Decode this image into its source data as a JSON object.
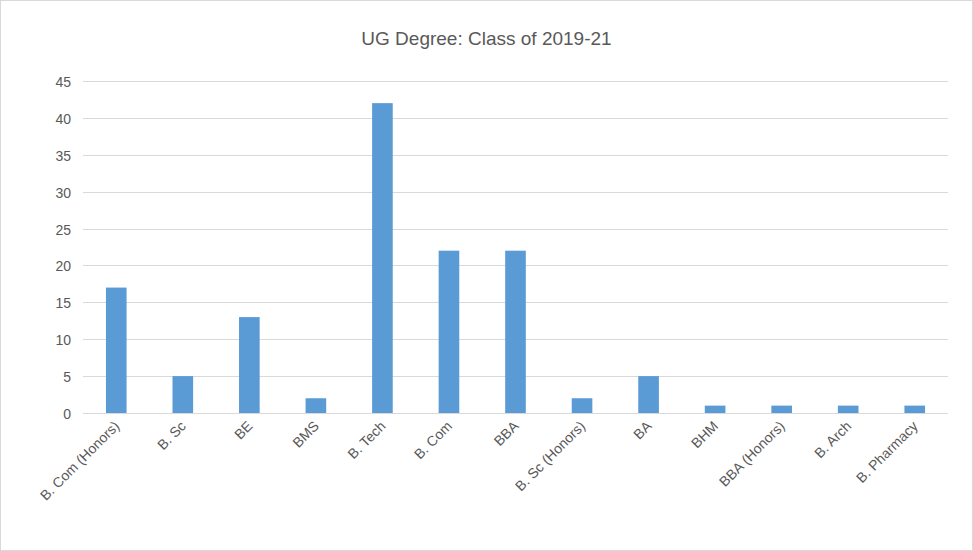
{
  "chart_data": {
    "type": "bar",
    "title": "UG Degree: Class of 2019-21",
    "categories": [
      "B. Com (Honors)",
      "B. Sc",
      "BE",
      "BMS",
      "B. Tech",
      "B. Com",
      "BBA",
      "B. Sc (Honors)",
      "BA",
      "BHM",
      "BBA (Honors)",
      "B. Arch",
      "B. Pharmacy"
    ],
    "values": [
      17,
      5,
      13,
      2,
      42,
      22,
      22,
      2,
      5,
      1,
      1,
      1,
      1
    ],
    "color": "#5b9bd5",
    "ylim": [
      0,
      45
    ],
    "yticks": [
      0,
      5,
      10,
      15,
      20,
      25,
      30,
      35,
      40,
      45
    ],
    "grid": true
  }
}
